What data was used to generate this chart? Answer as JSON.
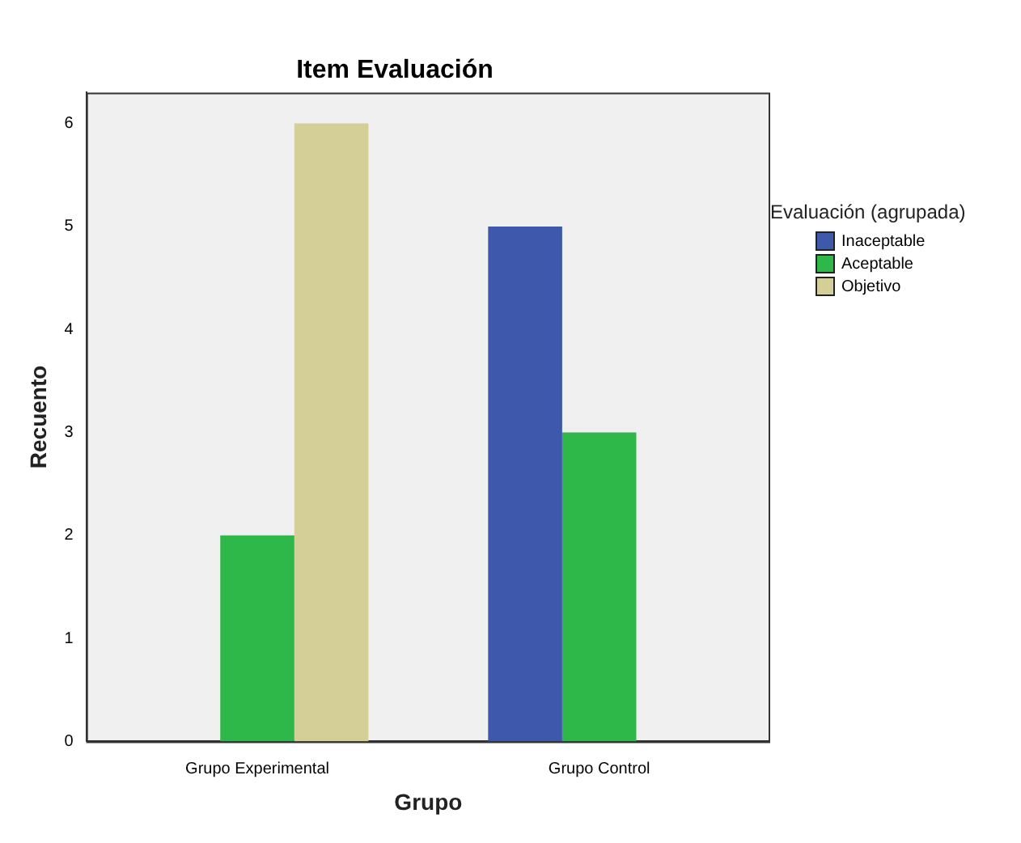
{
  "chart_data": {
    "type": "bar",
    "title": "Item Evaluación",
    "xlabel": "Grupo",
    "ylabel": "Recuento",
    "legend_title": "Evaluación (agrupada)",
    "categories": [
      "Grupo Experimental",
      "Grupo Control"
    ],
    "series": [
      {
        "name": "Inaceptable",
        "color": "#3e58ac",
        "values": [
          null,
          5
        ]
      },
      {
        "name": "Aceptable",
        "color": "#2eb84a",
        "values": [
          2,
          3
        ]
      },
      {
        "name": "Objetivo",
        "color": "#d4cf96",
        "values": [
          6,
          null
        ]
      }
    ],
    "ylim": [
      0,
      6.3
    ],
    "yticks": [
      0,
      1,
      2,
      3,
      4,
      5,
      6
    ],
    "grid": false,
    "legend": "right"
  }
}
